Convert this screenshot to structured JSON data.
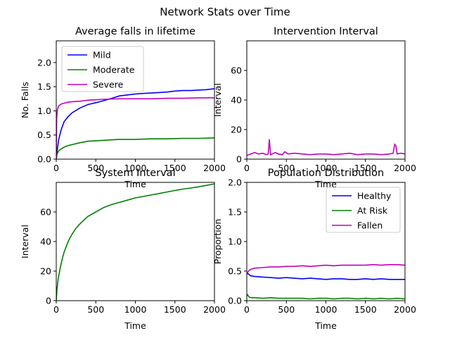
{
  "figure": {
    "title": "Network Stats over Time"
  },
  "chart_data": [
    {
      "type": "line",
      "title": "Average falls in lifetime",
      "xlabel": "Time",
      "ylabel": "No. Falls",
      "xlim": [
        0,
        2000
      ],
      "ylim": [
        0,
        2.45
      ],
      "xticks": [
        0,
        500,
        1000,
        1500,
        2000
      ],
      "yticks": [
        0.0,
        0.5,
        1.0,
        1.5,
        2.0
      ],
      "ytick_labels": [
        "0.0",
        "0.5",
        "1.0",
        "1.5",
        "2.0"
      ],
      "legend": "top-left",
      "series": [
        {
          "name": "Mild",
          "color": "#0000ff",
          "x": [
            0,
            10,
            30,
            60,
            100,
            150,
            200,
            300,
            400,
            500,
            600,
            700,
            800,
            900,
            1000,
            1100,
            1200,
            1300,
            1400,
            1500,
            1600,
            1700,
            1800,
            1900,
            2000
          ],
          "y": [
            0.0,
            0.15,
            0.4,
            0.6,
            0.78,
            0.88,
            0.96,
            1.06,
            1.13,
            1.17,
            1.21,
            1.26,
            1.31,
            1.33,
            1.35,
            1.36,
            1.37,
            1.38,
            1.39,
            1.41,
            1.42,
            1.42,
            1.43,
            1.44,
            1.46
          ]
        },
        {
          "name": "Moderate",
          "color": "#008000",
          "x": [
            0,
            10,
            30,
            60,
            100,
            150,
            200,
            300,
            400,
            500,
            600,
            700,
            800,
            900,
            1000,
            1200,
            1400,
            1600,
            1800,
            2000
          ],
          "y": [
            0.0,
            0.1,
            0.17,
            0.21,
            0.25,
            0.28,
            0.3,
            0.34,
            0.37,
            0.38,
            0.39,
            0.4,
            0.41,
            0.41,
            0.41,
            0.42,
            0.42,
            0.43,
            0.43,
            0.44
          ]
        },
        {
          "name": "Severe",
          "color": "#bf00bf",
          "x": [
            0,
            5,
            15,
            30,
            60,
            100,
            150,
            200,
            300,
            400,
            500,
            600,
            800,
            1000,
            1200,
            1400,
            1600,
            1800,
            2000
          ],
          "y": [
            0.0,
            0.85,
            1.03,
            1.1,
            1.14,
            1.16,
            1.18,
            1.19,
            1.2,
            1.22,
            1.23,
            1.24,
            1.25,
            1.25,
            1.25,
            1.26,
            1.26,
            1.27,
            1.27
          ]
        }
      ]
    },
    {
      "type": "line",
      "title": "Intervention Interval",
      "xlabel": "Time",
      "ylabel": "Interval",
      "xlim": [
        0,
        2000
      ],
      "ylim": [
        0,
        80
      ],
      "xticks": [
        0,
        500,
        1000,
        1500,
        2000
      ],
      "yticks": [
        0,
        20,
        40,
        60
      ],
      "ytick_labels": [
        "0",
        "20",
        "40",
        "60"
      ],
      "series": [
        {
          "color": "#bf00bf",
          "x": [
            0,
            50,
            100,
            150,
            200,
            250,
            270,
            285,
            300,
            320,
            360,
            400,
            450,
            480,
            520,
            600,
            700,
            800,
            900,
            1000,
            1100,
            1200,
            1300,
            1400,
            1500,
            1600,
            1700,
            1800,
            1850,
            1870,
            1885,
            1900,
            1950,
            2000
          ],
          "y": [
            2.5,
            3.5,
            4.5,
            3.5,
            4.0,
            3.0,
            3.5,
            13.5,
            3.0,
            3.5,
            4.5,
            3.5,
            3.0,
            5.0,
            3.5,
            4.0,
            3.5,
            3.0,
            3.5,
            3.5,
            3.0,
            3.5,
            4.0,
            3.0,
            3.5,
            3.5,
            3.0,
            3.5,
            4.0,
            10.0,
            9.0,
            3.5,
            4.0,
            3.5
          ]
        }
      ]
    },
    {
      "type": "line",
      "title": "System Interval",
      "xlabel": "Time",
      "ylabel": "Interval",
      "xlim": [
        0,
        2000
      ],
      "ylim": [
        0,
        80
      ],
      "xticks": [
        0,
        500,
        1000,
        1500,
        2000
      ],
      "yticks": [
        0,
        20,
        40,
        60
      ],
      "ytick_labels": [
        "0",
        "20",
        "40",
        "60"
      ],
      "series": [
        {
          "color": "#008000",
          "x": [
            0,
            10,
            25,
            50,
            75,
            100,
            150,
            200,
            250,
            300,
            400,
            500,
            600,
            700,
            800,
            900,
            1000,
            1100,
            1200,
            1300,
            1400,
            1500,
            1600,
            1700,
            1800,
            1900,
            2000
          ],
          "y": [
            0,
            8,
            15,
            22,
            28,
            33,
            40,
            45,
            49,
            52,
            57,
            60,
            63,
            65,
            66.5,
            68,
            69.5,
            70.5,
            71.5,
            72.5,
            73.5,
            74.5,
            75.5,
            76.2,
            77,
            78,
            79
          ]
        }
      ]
    },
    {
      "type": "line",
      "title": "Population Distribution",
      "xlabel": "Time",
      "ylabel": "Proportion",
      "xlim": [
        0,
        2000
      ],
      "ylim": [
        0,
        2.0
      ],
      "xticks": [
        0,
        500,
        1000,
        1500,
        2000
      ],
      "yticks": [
        0.0,
        0.5,
        1.0,
        1.5,
        2.0
      ],
      "ytick_labels": [
        "0.0",
        "0.5",
        "1.0",
        "1.5",
        "2.0"
      ],
      "legend": "top-right",
      "series": [
        {
          "name": "Healthy",
          "color": "#0000ff",
          "x": [
            0,
            20,
            50,
            100,
            200,
            300,
            400,
            500,
            600,
            700,
            800,
            900,
            1000,
            1100,
            1200,
            1300,
            1400,
            1500,
            1600,
            1700,
            1800,
            1900,
            2000
          ],
          "y": [
            0.48,
            0.45,
            0.42,
            0.41,
            0.4,
            0.39,
            0.38,
            0.39,
            0.38,
            0.37,
            0.38,
            0.37,
            0.36,
            0.37,
            0.37,
            0.36,
            0.36,
            0.37,
            0.36,
            0.37,
            0.36,
            0.36,
            0.36
          ]
        },
        {
          "name": "At Risk",
          "color": "#008000",
          "x": [
            0,
            10,
            30,
            60,
            100,
            200,
            300,
            400,
            500,
            600,
            700,
            800,
            900,
            1000,
            1100,
            1200,
            1300,
            1400,
            1500,
            1600,
            1700,
            1800,
            1900,
            2000
          ],
          "y": [
            0.08,
            0.1,
            0.06,
            0.05,
            0.05,
            0.04,
            0.05,
            0.04,
            0.04,
            0.04,
            0.04,
            0.03,
            0.04,
            0.04,
            0.03,
            0.04,
            0.04,
            0.03,
            0.04,
            0.03,
            0.04,
            0.03,
            0.04,
            0.03
          ]
        },
        {
          "name": "Fallen",
          "color": "#bf00bf",
          "x": [
            0,
            20,
            50,
            100,
            200,
            300,
            400,
            500,
            600,
            700,
            800,
            900,
            1000,
            1100,
            1200,
            1300,
            1400,
            1500,
            1600,
            1700,
            1800,
            1900,
            2000
          ],
          "y": [
            0.44,
            0.5,
            0.53,
            0.55,
            0.56,
            0.57,
            0.57,
            0.58,
            0.58,
            0.59,
            0.58,
            0.59,
            0.6,
            0.59,
            0.6,
            0.6,
            0.6,
            0.6,
            0.61,
            0.6,
            0.61,
            0.61,
            0.6
          ]
        }
      ]
    }
  ]
}
